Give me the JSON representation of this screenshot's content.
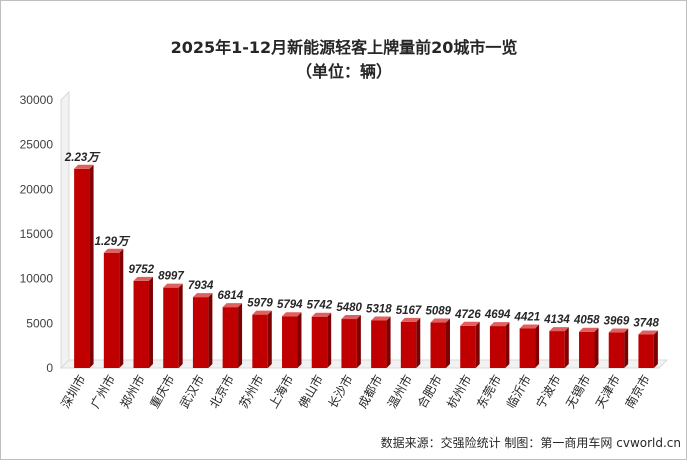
{
  "chart_data": {
    "type": "bar",
    "title": "2025年1-12月新能源轻客上牌量前20城市一览",
    "subtitle": "（单位：辆）",
    "categories": [
      "深圳市",
      "广州市",
      "郑州市",
      "重庆市",
      "武汉市",
      "北京市",
      "苏州市",
      "上海市",
      "佛山市",
      "长沙市",
      "成都市",
      "温州市",
      "合肥市",
      "杭州市",
      "东莞市",
      "临沂市",
      "宁波市",
      "无锡市",
      "天津市",
      "南京市"
    ],
    "values": [
      22300,
      12900,
      9752,
      8997,
      7934,
      6814,
      5979,
      5794,
      5742,
      5480,
      5318,
      5167,
      5089,
      4726,
      4694,
      4421,
      4134,
      4058,
      3969,
      3748
    ],
    "data_labels": [
      "2.23万",
      "1.29万",
      "9752",
      "8997",
      "7934",
      "6814",
      "5979",
      "5794",
      "5742",
      "5480",
      "5318",
      "5167",
      "5089",
      "4726",
      "4694",
      "4421",
      "4134",
      "4058",
      "3969",
      "3748"
    ],
    "yticks": [
      "0",
      "5000",
      "10000",
      "15000",
      "20000",
      "25000",
      "30000"
    ],
    "ylim": [
      0,
      30000
    ],
    "grid": false,
    "legend": "none",
    "bar_color": "#c00000",
    "source_note": "数据来源：交强险统计  制图：第一商用车网 cvworld.cn"
  }
}
